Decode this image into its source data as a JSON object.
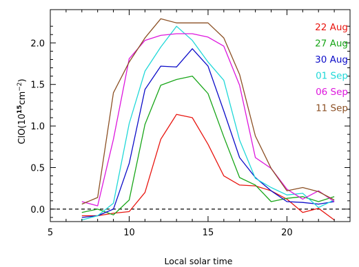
{
  "chart_data": {
    "type": "line",
    "xlabel": "Local solar time",
    "ylabel_main": "ClO(10",
    "ylabel_exp1": "15",
    "ylabel_mid": "cm",
    "ylabel_exp2": "−2",
    "ylabel_end": ")",
    "xlim": [
      5,
      24
    ],
    "ylim": [
      -0.15,
      2.4
    ],
    "xticks": [
      5,
      10,
      15,
      20
    ],
    "yticks": [
      0.0,
      0.5,
      1.0,
      1.5,
      2.0
    ],
    "xtick_labels": [
      "5",
      "10",
      "15",
      "20"
    ],
    "ytick_labels": [
      "0.0",
      "0.5",
      "1.0",
      "1.5",
      "2.0"
    ],
    "reference_line": {
      "y": 0.0,
      "style": "dashed",
      "color": "#000000"
    },
    "legend_position": "top-right",
    "x": [
      7,
      8,
      9,
      10,
      11,
      12,
      13,
      14,
      15,
      16,
      17,
      18,
      19,
      20,
      21,
      22,
      23
    ],
    "series": [
      {
        "name": "22 Aug",
        "color": "#e8150f",
        "values": [
          -0.08,
          -0.08,
          -0.05,
          -0.03,
          0.2,
          0.84,
          1.14,
          1.1,
          0.78,
          0.4,
          0.29,
          0.28,
          0.22,
          0.12,
          -0.04,
          0.01,
          -0.13
        ]
      },
      {
        "name": "27 Aug",
        "color": "#17a517",
        "values": [
          -0.04,
          0.0,
          -0.07,
          0.11,
          1.02,
          1.49,
          1.56,
          1.6,
          1.39,
          0.87,
          0.38,
          0.29,
          0.09,
          0.13,
          0.15,
          0.09,
          0.15
        ]
      },
      {
        "name": "30 Aug",
        "color": "#0b0bc8",
        "values": [
          -0.1,
          -0.08,
          0.0,
          0.55,
          1.44,
          1.72,
          1.71,
          1.93,
          1.72,
          1.18,
          0.62,
          0.38,
          0.22,
          0.09,
          0.08,
          0.06,
          0.09
        ]
      },
      {
        "name": "01 Sep",
        "color": "#1fd8d8",
        "values": [
          -0.13,
          -0.08,
          0.07,
          1.03,
          1.66,
          1.95,
          2.2,
          2.03,
          1.77,
          1.55,
          0.83,
          0.37,
          0.26,
          0.17,
          0.19,
          0.02,
          0.11
        ]
      },
      {
        "name": "06 Sep",
        "color": "#dd15dd",
        "values": [
          0.09,
          0.04,
          0.84,
          1.81,
          2.03,
          2.09,
          2.11,
          2.11,
          2.07,
          1.96,
          1.49,
          0.62,
          0.49,
          0.24,
          0.12,
          0.22,
          0.09
        ]
      },
      {
        "name": "11 Sep",
        "color": "#8b4f23",
        "values": [
          0.06,
          0.14,
          1.4,
          1.77,
          2.06,
          2.29,
          2.24,
          2.24,
          2.24,
          2.06,
          1.62,
          0.88,
          0.49,
          0.22,
          0.26,
          0.21,
          0.11
        ]
      }
    ]
  }
}
